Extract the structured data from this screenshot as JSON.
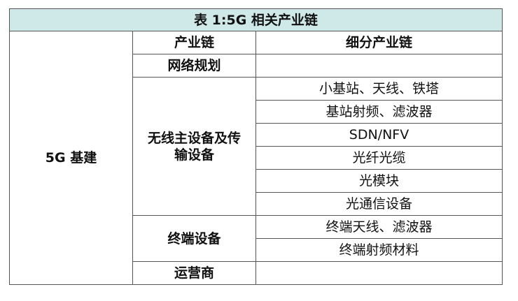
{
  "title": "表 1:5G 相关产业链",
  "headers": {
    "chain": "产业链",
    "sub_chain": "细分产业链"
  },
  "category": "5G 基建",
  "groups": {
    "network_planning": {
      "label": "网络规划",
      "items": [
        ""
      ]
    },
    "wireless": {
      "label": "无线主设备及传输设备",
      "items": [
        "小基站、天线、铁塔",
        "基站射频、滤波器",
        "SDN/NFV",
        "光纤光缆",
        "光模块",
        "光通信设备"
      ]
    },
    "terminal": {
      "label": "终端设备",
      "items": [
        "终端天线、滤波器",
        "终端射频材料"
      ]
    },
    "operator": {
      "label": "运营商",
      "items": [
        ""
      ]
    }
  },
  "colors": {
    "title_bg": "#cfe9e8",
    "border": "#555555"
  }
}
